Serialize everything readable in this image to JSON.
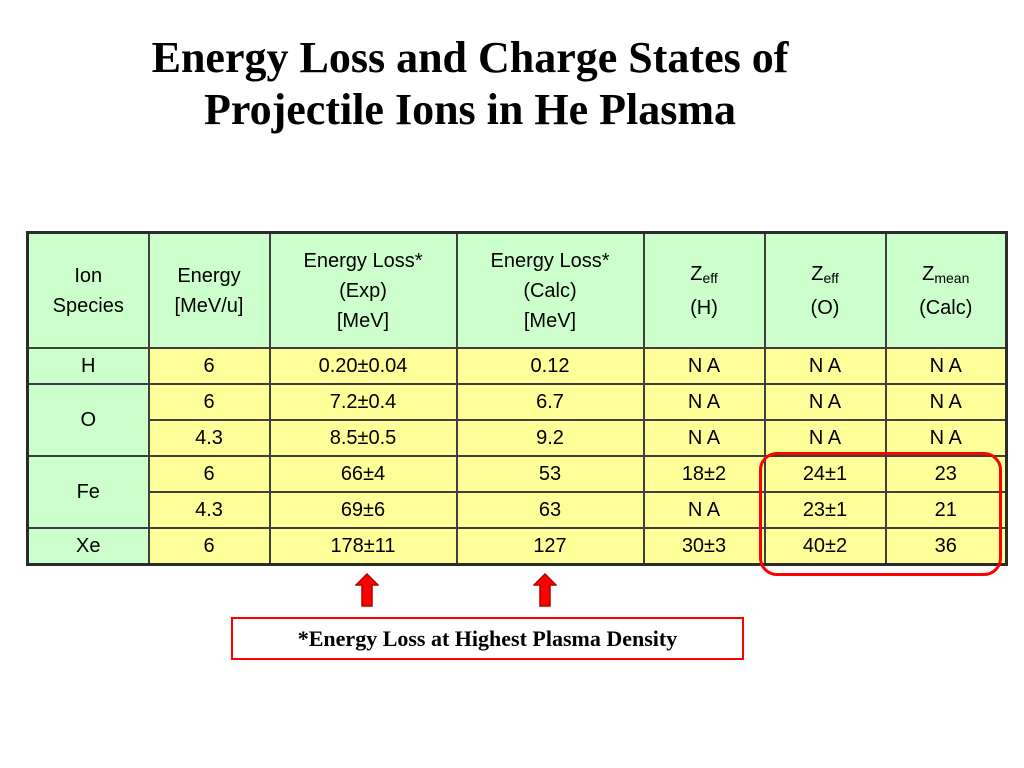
{
  "title": {
    "line1": "Energy Loss and Charge States of",
    "line2": "Projectile Ions in He Plasma"
  },
  "table": {
    "headers": [
      {
        "lines": [
          "Ion",
          "Species"
        ]
      },
      {
        "lines": [
          "Energy",
          "[MeV/u]"
        ]
      },
      {
        "lines": [
          "Energy Loss*",
          "(Exp)",
          "[MeV]"
        ]
      },
      {
        "lines": [
          "Energy Loss*",
          "(Calc)",
          "[MeV]"
        ]
      },
      {
        "main": "Z",
        "sub": "eff",
        "line2": "(H)"
      },
      {
        "main": "Z",
        "sub": "eff",
        "line2": "(O)"
      },
      {
        "main": "Z",
        "sub": "mean",
        "line2": "(Calc)"
      }
    ],
    "groups": [
      {
        "species": "H",
        "rows": [
          [
            "6",
            "0.20±0.04",
            "0.12",
            "N A",
            "N A",
            "N A"
          ]
        ]
      },
      {
        "species": "O",
        "rows": [
          [
            "6",
            "7.2±0.4",
            "6.7",
            "N A",
            "N A",
            "N A"
          ],
          [
            "4.3",
            "8.5±0.5",
            "9.2",
            "N A",
            "N A",
            "N A"
          ]
        ]
      },
      {
        "species": "Fe",
        "rows": [
          [
            "6",
            "66±4",
            "53",
            "18±2",
            "24±1",
            "23"
          ],
          [
            "4.3",
            "69±6",
            "63",
            "N A",
            "23±1",
            "21"
          ]
        ]
      },
      {
        "species": "Xe",
        "rows": [
          [
            "6",
            "178±11",
            "127",
            "30±3",
            "40±2",
            "36"
          ]
        ]
      }
    ]
  },
  "footnote": "*Energy Loss at Highest Plasma Density",
  "colors": {
    "header_bg": "#ccffcc",
    "cell_bg": "#ffff99",
    "accent": "#ff0000"
  },
  "icons": [
    "up-arrow-icon"
  ]
}
